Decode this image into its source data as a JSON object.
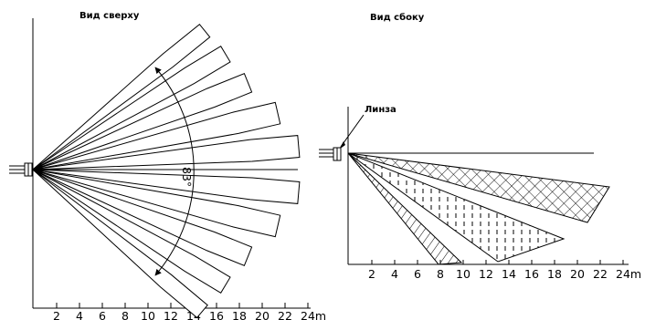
{
  "top_view": {
    "title": "Вид сверху",
    "ticks": [
      "2",
      "4",
      "6",
      "8",
      "10",
      "12",
      "14",
      "16",
      "18",
      "20",
      "22"
    ],
    "last_tick": "24m",
    "angle_label": "83°"
  },
  "side_view": {
    "title": "Вид сбоку",
    "lens_label": "Линза",
    "ticks": [
      "2",
      "4",
      "6",
      "8",
      "10",
      "12",
      "14",
      "16",
      "18",
      "20",
      "22"
    ],
    "last_tick": "24m"
  }
}
